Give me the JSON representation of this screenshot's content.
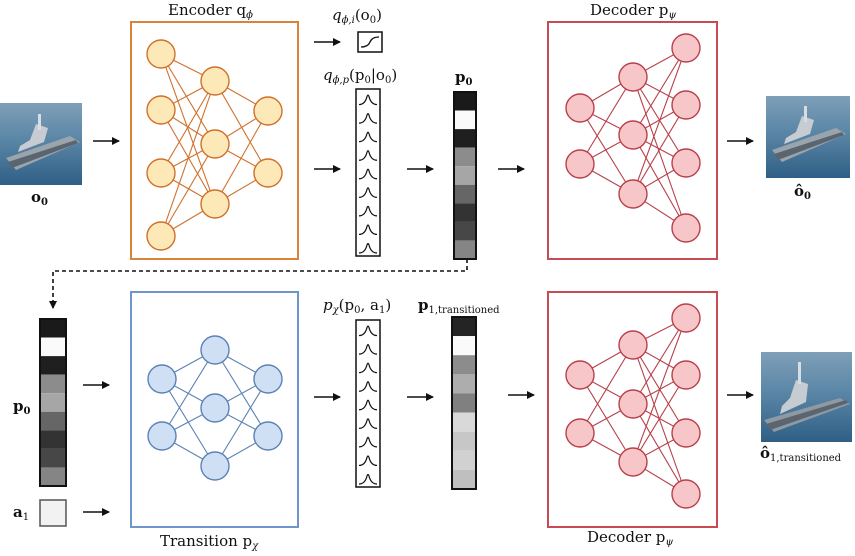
{
  "labels": {
    "encoder": "Encoder q",
    "encoder_sub": "ϕ",
    "decoder": "Decoder p",
    "decoder_sub": "ψ",
    "transition": "Transition p",
    "transition_sub": "χ",
    "q_i": "q",
    "q_i_sub": "ϕ,i",
    "q_i_arg": "(o",
    "q_i_arg_sub": "0",
    "q_i_close": ")",
    "q_p": "q",
    "q_p_sub": "ϕ,p",
    "q_p_arg": "(p",
    "q_p_arg_sub": "0",
    "q_p_mid": "|o",
    "q_p_mid_sub": "0",
    "q_p_close": ")",
    "p_chi": "p",
    "p_chi_sub": "χ",
    "p_chi_arg": "(p",
    "p_chi_arg_sub": "0",
    "p_chi_mid": ", a",
    "p_chi_mid_sub": "1",
    "p_chi_close": ")",
    "p0_top": "p",
    "p0_top_sub": "0",
    "p0_left": "p",
    "p0_left_sub": "0",
    "p1": "p",
    "p1_sub": "1,transitioned",
    "a1": "a",
    "a1_sub": "1",
    "o0": "o",
    "o0_sub": "0",
    "o0_hat": "ô",
    "o0_hat_sub": "0",
    "o1_hat": "ô",
    "o1_hat_sub": "1,transitioned"
  },
  "colors": {
    "encoder_border": "#d9843a",
    "encoder_fill": "#fde8b8",
    "encoder_edge": "#d0702a",
    "decoder_border": "#c94a52",
    "decoder_fill": "#f7c6c8",
    "decoder_edge": "#b8404a",
    "transition_border": "#6f96c8",
    "transition_fill": "#cfe0f4",
    "transition_edge": "#5c82b4"
  },
  "latent_p0": [
    0.1,
    0.98,
    0.12,
    0.55,
    0.65,
    0.4,
    0.2,
    0.28,
    0.52
  ],
  "latent_p1": [
    0.14,
    0.98,
    0.55,
    0.68,
    0.5,
    0.85,
    0.78,
    0.82,
    0.75
  ]
}
